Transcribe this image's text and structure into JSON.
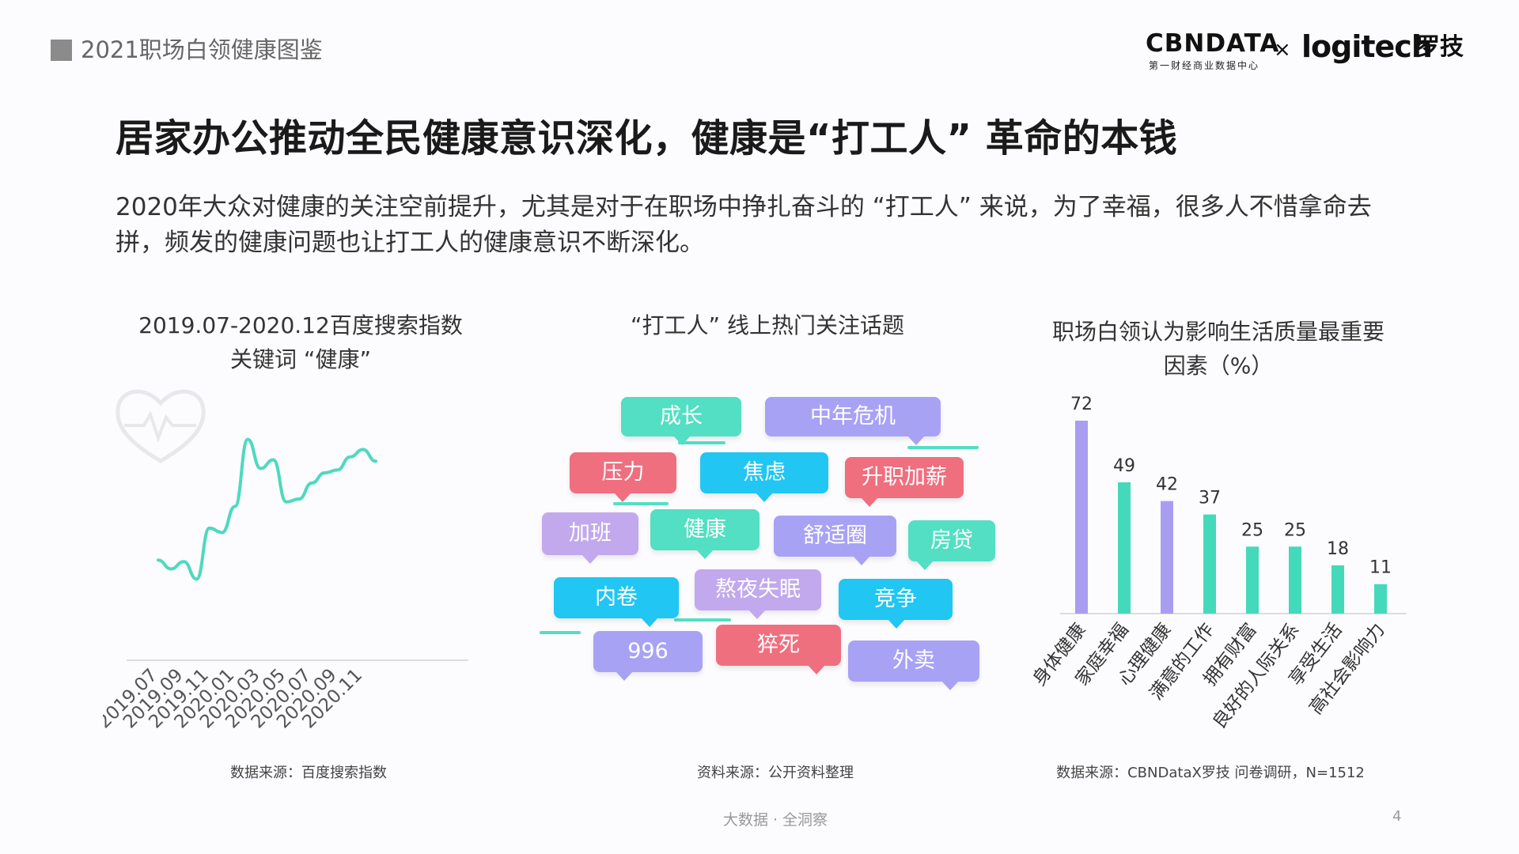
{
  "header": {
    "title": "2021职场白领健康图鉴",
    "cbn_logo": "CBNDATA",
    "cbn_sub": "第一财经商业数据中心",
    "x": "×",
    "logitech": "logitech",
    "logitech_cn": "罗技"
  },
  "headline": "居家办公推动全民健康意识深化，健康是“打工人” 革命的本钱",
  "intro": "2020年大众对健康的关注空前提升，尤其是对于在职场中挣扎奋斗的 “打工人” 来说，为了幸福，很多人不惜拿命去拼，频发的健康问题也让打工人的健康意识不断深化。",
  "charts": {
    "line_title": "2019.07-2020.12百度搜索指数关键词 “健康”",
    "cloud_title": "“打工人” 线上热门关注话题",
    "bar_title": "职场白领认为影响生活质量最重要因素（%）"
  },
  "sources": {
    "line": "数据来源：百度搜索指数",
    "cloud": "资料来源：公开资料整理",
    "bar": "数据来源：CBNDataX罗技 问卷调研，N=1512"
  },
  "footer": "大数据 · 全洞察",
  "page_number": "4",
  "icons": {
    "line_chart_decoration": "heart-pulse-icon"
  },
  "colors": {
    "line": "#4dd9c0",
    "bar_purple": "#a99df2",
    "bar_teal": "#45d9bb",
    "bubble_teal": "#52dfc3",
    "bubble_purple": "#a8a2f5",
    "bubble_red": "#ef6f7f",
    "bubble_blue": "#21c6f2",
    "bubble_lavender": "#c2a8ec"
  },
  "word_cloud": [
    {
      "text": "成长",
      "color": "#52dfc3"
    },
    {
      "text": "中年危机",
      "color": "#a8a2f5"
    },
    {
      "text": "压力",
      "color": "#ef6f7f"
    },
    {
      "text": "焦虑",
      "color": "#21c6f2"
    },
    {
      "text": "升职加薪",
      "color": "#ef6f7f"
    },
    {
      "text": "加班",
      "color": "#c2a8ec"
    },
    {
      "text": "健康",
      "color": "#52dfc3"
    },
    {
      "text": "舒适圈",
      "color": "#a8a2f5"
    },
    {
      "text": "房贷",
      "color": "#52dfc3"
    },
    {
      "text": "内卷",
      "color": "#21c6f2"
    },
    {
      "text": "熬夜失眠",
      "color": "#c2a8ec"
    },
    {
      "text": "竞争",
      "color": "#21c6f2"
    },
    {
      "text": "996",
      "color": "#a8a2f5"
    },
    {
      "text": "猝死",
      "color": "#ef6f7f"
    },
    {
      "text": "外卖",
      "color": "#a8a2f5"
    }
  ],
  "chart_data": [
    {
      "type": "line",
      "title": "2019.07-2020.12百度搜索指数关键词 “健康”",
      "x_tick_labels": [
        "2019.07",
        "2019.09",
        "2019.11",
        "2020.01",
        "2020.03",
        "2020.05",
        "2020.07",
        "2020.09",
        "2020.11"
      ],
      "x": [
        "2019.07",
        "2019.08",
        "2019.09",
        "2019.10",
        "2019.11",
        "2019.12",
        "2020.01",
        "2020.02",
        "2020.03",
        "2020.04",
        "2020.05",
        "2020.06",
        "2020.07",
        "2020.08",
        "2020.09",
        "2020.10",
        "2020.11",
        "2020.12"
      ],
      "values": [
        15,
        9,
        14,
        2,
        37,
        34,
        52,
        98,
        78,
        84,
        55,
        57,
        68,
        75,
        77,
        86,
        91,
        83
      ],
      "y_axis_visible": false,
      "grid": false,
      "note": "relative index, no y-axis values shown"
    },
    {
      "type": "bar",
      "title": "职场白领认为影响生活质量最重要因素（%）",
      "categories": [
        "身体健康",
        "家庭幸福",
        "心理健康",
        "满意的工作",
        "拥有财富",
        "良好的人际关系",
        "享受生活",
        "高社会影响力"
      ],
      "values": [
        72,
        49,
        42,
        37,
        25,
        25,
        18,
        11
      ],
      "bar_colors": [
        "#a99df2",
        "#45d9bb",
        "#a99df2",
        "#45d9bb",
        "#45d9bb",
        "#45d9bb",
        "#45d9bb",
        "#45d9bb"
      ],
      "ylim": [
        0,
        80
      ],
      "data_labels": true,
      "grid": false
    }
  ]
}
